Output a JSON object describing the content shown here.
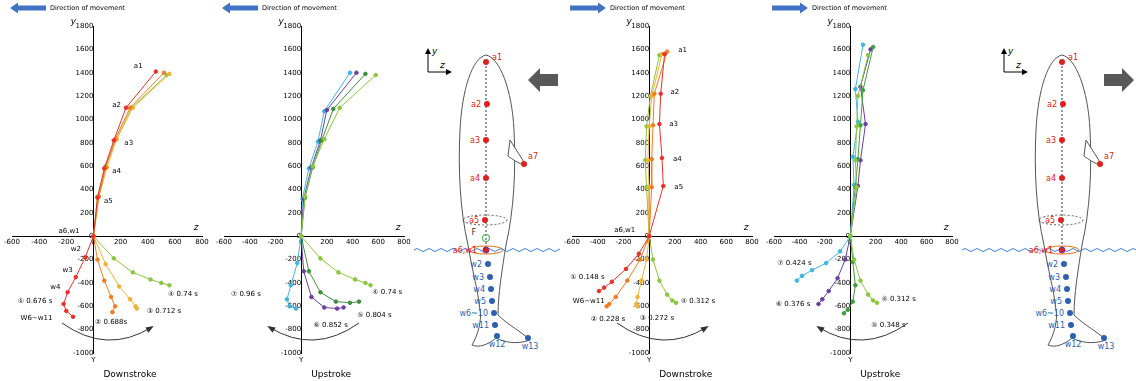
{
  "chart_data": [
    {
      "type": "line",
      "title": "Direction of movement",
      "subtitle": "Downstroke",
      "x_label": "z",
      "y_label": "y",
      "xlim": [
        -600,
        800
      ],
      "ylim": [
        -1000,
        1800
      ],
      "xticks": [
        -600,
        -400,
        -200,
        0,
        200,
        400,
        600,
        800
      ],
      "yticks": [
        -1000,
        -800,
        -600,
        -400,
        -200,
        0,
        200,
        400,
        600,
        800,
        1000,
        1200,
        1400,
        1600,
        1800
      ],
      "grid": false,
      "marker": "circle",
      "line_style": "solid",
      "series": [
        {
          "color": "#e8302a",
          "x": [
            460,
            240,
            150,
            80,
            30,
            0,
            -60,
            -130,
            -190,
            -220,
            -200,
            -150
          ],
          "values": [
            1410,
            1100,
            820,
            580,
            330,
            0,
            -180,
            -350,
            -480,
            -580,
            -640,
            -690
          ]
        },
        {
          "color": "#f07d22",
          "x": [
            520,
            270,
            160,
            90,
            40,
            0,
            30,
            80,
            130,
            160,
            140
          ],
          "values": [
            1400,
            1100,
            830,
            590,
            340,
            0,
            -200,
            -380,
            -520,
            -600,
            -650
          ]
        },
        {
          "color": "#f2b233",
          "x": [
            560,
            290,
            170,
            100,
            40,
            0,
            90,
            190,
            270,
            310,
            320
          ],
          "values": [
            1390,
            1100,
            830,
            590,
            340,
            0,
            -240,
            -430,
            -540,
            -600,
            -620
          ]
        },
        {
          "color": "#8cc63f",
          "x": [
            540,
            280,
            170,
            90,
            30,
            0,
            150,
            290,
            420,
            500,
            560
          ],
          "values": [
            1380,
            1100,
            830,
            600,
            340,
            0,
            -190,
            -310,
            -370,
            -400,
            -420
          ]
        }
      ],
      "annotations": [
        {
          "text": "a1",
          "x": 330,
          "y": 1460
        },
        {
          "text": "a2",
          "x": 170,
          "y": 1120
        },
        {
          "text": "a3",
          "x": 260,
          "y": 800
        },
        {
          "text": "a4",
          "x": 170,
          "y": 560
        },
        {
          "text": "a5",
          "x": 110,
          "y": 300
        },
        {
          "text": "a6,w1",
          "x": -180,
          "y": 45
        },
        {
          "text": "w2",
          "x": -130,
          "y": -110
        },
        {
          "text": "w3",
          "x": -190,
          "y": -290
        },
        {
          "text": "w4",
          "x": -280,
          "y": -440
        },
        {
          "text": "W6~w11",
          "x": -420,
          "y": -700
        },
        {
          "text": "① 0.676 s",
          "x": -430,
          "y": -560
        },
        {
          "text": "② 0.688s",
          "x": 130,
          "y": -740
        },
        {
          "text": "③ 0.712 s",
          "x": 520,
          "y": -640
        },
        {
          "text": "④ 0.74 s",
          "x": 660,
          "y": -500
        },
        {
          "text": "Y",
          "x": 0,
          "y": -1060
        }
      ]
    },
    {
      "type": "line",
      "title": "Direction of movement",
      "subtitle": "Upstroke",
      "x_label": "z",
      "y_label": "y",
      "xlim": [
        -600,
        800
      ],
      "ylim": [
        -1000,
        1800
      ],
      "xticks": [
        -600,
        -400,
        -200,
        0,
        200,
        400,
        600,
        800
      ],
      "yticks": [
        -1000,
        -800,
        -600,
        -400,
        -200,
        0,
        200,
        400,
        600,
        800,
        1000,
        1200,
        1400,
        1600,
        1800
      ],
      "grid": false,
      "marker": "circle",
      "line_style": "solid",
      "series": [
        {
          "color": "#8cc63f",
          "x": [
            580,
            300,
            180,
            90,
            30,
            0,
            150,
            290,
            420,
            500,
            540
          ],
          "values": [
            1380,
            1100,
            830,
            600,
            340,
            0,
            -190,
            -310,
            -370,
            -400,
            -420
          ]
        },
        {
          "color": "#3f8f3f",
          "x": [
            500,
            250,
            160,
            90,
            30,
            0,
            60,
            150,
            270,
            380,
            450
          ],
          "values": [
            1390,
            1090,
            820,
            590,
            330,
            0,
            -300,
            -480,
            -560,
            -570,
            -560
          ]
        },
        {
          "color": "#6b3fa0",
          "x": [
            430,
            200,
            150,
            80,
            20,
            0,
            20,
            80,
            180,
            280,
            330
          ],
          "values": [
            1400,
            1080,
            820,
            590,
            320,
            0,
            -300,
            -520,
            -610,
            -620,
            -610
          ]
        },
        {
          "color": "#3fb5e0",
          "x": [
            380,
            180,
            130,
            60,
            10,
            0,
            -30,
            -80,
            -110,
            -90,
            -40
          ],
          "values": [
            1400,
            1070,
            810,
            580,
            320,
            0,
            -230,
            -420,
            -540,
            -600,
            -620
          ]
        }
      ],
      "annotations": [
        {
          "text": "④ 0.74 s",
          "x": 670,
          "y": -480
        },
        {
          "text": "⑤ 0.804 s",
          "x": 570,
          "y": -680
        },
        {
          "text": "⑥ 0.852 s",
          "x": 230,
          "y": -760
        },
        {
          "text": "⑦ 0.96 s",
          "x": -430,
          "y": -500
        },
        {
          "text": "Y",
          "x": 0,
          "y": -1060
        }
      ]
    },
    {
      "type": "line",
      "title": "Direction of movement",
      "subtitle": "Downstroke",
      "x_label": "z",
      "y_label": "y",
      "xlim": [
        -600,
        800
      ],
      "ylim": [
        -1000,
        1800
      ],
      "xticks": [
        -600,
        -400,
        -200,
        0,
        200,
        400,
        600,
        800
      ],
      "yticks": [
        -1000,
        -800,
        -600,
        -400,
        -200,
        0,
        200,
        400,
        600,
        800,
        1000,
        1200,
        1400,
        1600,
        1800
      ],
      "grid": false,
      "marker": "circle",
      "line_style": "solid",
      "series": [
        {
          "color": "#e8302a",
          "x": [
            120,
            90,
            80,
            100,
            110,
            0,
            -80,
            -180,
            -290,
            -350,
            -390
          ],
          "values": [
            1560,
            1220,
            960,
            670,
            430,
            0,
            -150,
            -280,
            -390,
            -440,
            -470
          ]
        },
        {
          "color": "#f07d22",
          "x": [
            140,
            40,
            30,
            20,
            20,
            0,
            -70,
            -170,
            -260,
            -310,
            -330
          ],
          "values": [
            1580,
            1220,
            950,
            660,
            420,
            0,
            -200,
            -380,
            -520,
            -580,
            -600
          ]
        },
        {
          "color": "#f2b233",
          "x": [
            100,
            20,
            0,
            -10,
            0,
            0,
            -20,
            -60,
            -90,
            -100,
            -90
          ],
          "values": [
            1560,
            1200,
            940,
            650,
            420,
            0,
            -200,
            -380,
            -520,
            -580,
            -600
          ]
        },
        {
          "color": "#8cc63f",
          "x": [
            80,
            10,
            -20,
            -30,
            -20,
            0,
            30,
            80,
            140,
            180,
            210
          ],
          "values": [
            1550,
            1200,
            940,
            650,
            420,
            0,
            -200,
            -380,
            -500,
            -550,
            -570
          ]
        }
      ],
      "annotations": [
        {
          "text": "a1",
          "x": 260,
          "y": 1590
        },
        {
          "text": "a2",
          "x": 200,
          "y": 1230
        },
        {
          "text": "a3",
          "x": 190,
          "y": 960
        },
        {
          "text": "a4",
          "x": 220,
          "y": 660
        },
        {
          "text": "a5",
          "x": 230,
          "y": 420
        },
        {
          "text": "a6,w1",
          "x": -190,
          "y": 55
        },
        {
          "text": "W6~w11",
          "x": -470,
          "y": -560
        },
        {
          "text": "① 0.148 s",
          "x": -480,
          "y": -350
        },
        {
          "text": "② 0.228 s",
          "x": -320,
          "y": -710
        },
        {
          "text": "③ 0.272 s",
          "x": 60,
          "y": -700
        },
        {
          "text": "④ 0.312 s",
          "x": 380,
          "y": -560
        },
        {
          "text": "Y",
          "x": 0,
          "y": -1060
        }
      ]
    },
    {
      "type": "line",
      "title": "Direction of movement",
      "subtitle": "Upstroke",
      "x_label": "z",
      "y_label": "y",
      "xlim": [
        -600,
        800
      ],
      "ylim": [
        -1000,
        1800
      ],
      "xticks": [
        -600,
        -400,
        -200,
        0,
        200,
        400,
        600,
        800
      ],
      "yticks": [
        -1000,
        -800,
        -600,
        -400,
        -200,
        0,
        200,
        400,
        600,
        800,
        1000,
        1200,
        1400,
        1600,
        1800
      ],
      "grid": false,
      "marker": "circle",
      "line_style": "solid",
      "series": [
        {
          "color": "#8cc63f",
          "x": [
            140,
            60,
            50,
            40,
            50,
            0,
            30,
            80,
            140,
            180,
            210
          ],
          "values": [
            1550,
            1200,
            940,
            650,
            420,
            0,
            -200,
            -380,
            -500,
            -550,
            -570
          ]
        },
        {
          "color": "#3f9f3f",
          "x": [
            180,
            100,
            80,
            60,
            40,
            0,
            20,
            40,
            20,
            -20,
            -50
          ],
          "values": [
            1620,
            1250,
            950,
            660,
            420,
            0,
            -220,
            -420,
            -560,
            -630,
            -660
          ]
        },
        {
          "color": "#6b3fa0",
          "x": [
            160,
            80,
            120,
            80,
            60,
            0,
            -40,
            -100,
            -170,
            -220,
            -250
          ],
          "values": [
            1600,
            1280,
            960,
            650,
            430,
            0,
            -200,
            -360,
            -470,
            -540,
            -580
          ]
        },
        {
          "color": "#3fb5e0",
          "x": [
            100,
            40,
            60,
            20,
            30,
            0,
            -80,
            -190,
            -300,
            -380,
            -420
          ],
          "values": [
            1640,
            1260,
            980,
            680,
            440,
            0,
            -130,
            -230,
            -290,
            -340,
            -380
          ]
        }
      ],
      "annotations": [
        {
          "text": "④ 0.312 s",
          "x": 380,
          "y": -540
        },
        {
          "text": "⑤ 0.348 s",
          "x": 300,
          "y": -760
        },
        {
          "text": "⑥ 0.376 s",
          "x": -450,
          "y": -580
        },
        {
          "text": "⑦ 0.424 s",
          "x": -440,
          "y": -230
        },
        {
          "text": "Y",
          "x": 0,
          "y": -1060
        }
      ]
    }
  ],
  "diagrams": [
    {
      "axis_labels": [
        "y",
        "z"
      ],
      "labels": [
        "a1",
        "a2",
        "a3",
        "a4",
        "a5",
        "a7",
        "a6,w1",
        "w2",
        "w3",
        "w4",
        "w5",
        "w6~10",
        "w11",
        "w12",
        "w13",
        "F"
      ]
    },
    {
      "axis_labels": [
        "y",
        "z"
      ],
      "labels": [
        "a1",
        "a2",
        "a3",
        "a4",
        "a5",
        "a7",
        "a6,w1",
        "w2",
        "w3",
        "w4",
        "w5",
        "w6~10",
        "w11",
        "w12",
        "w13"
      ]
    }
  ]
}
